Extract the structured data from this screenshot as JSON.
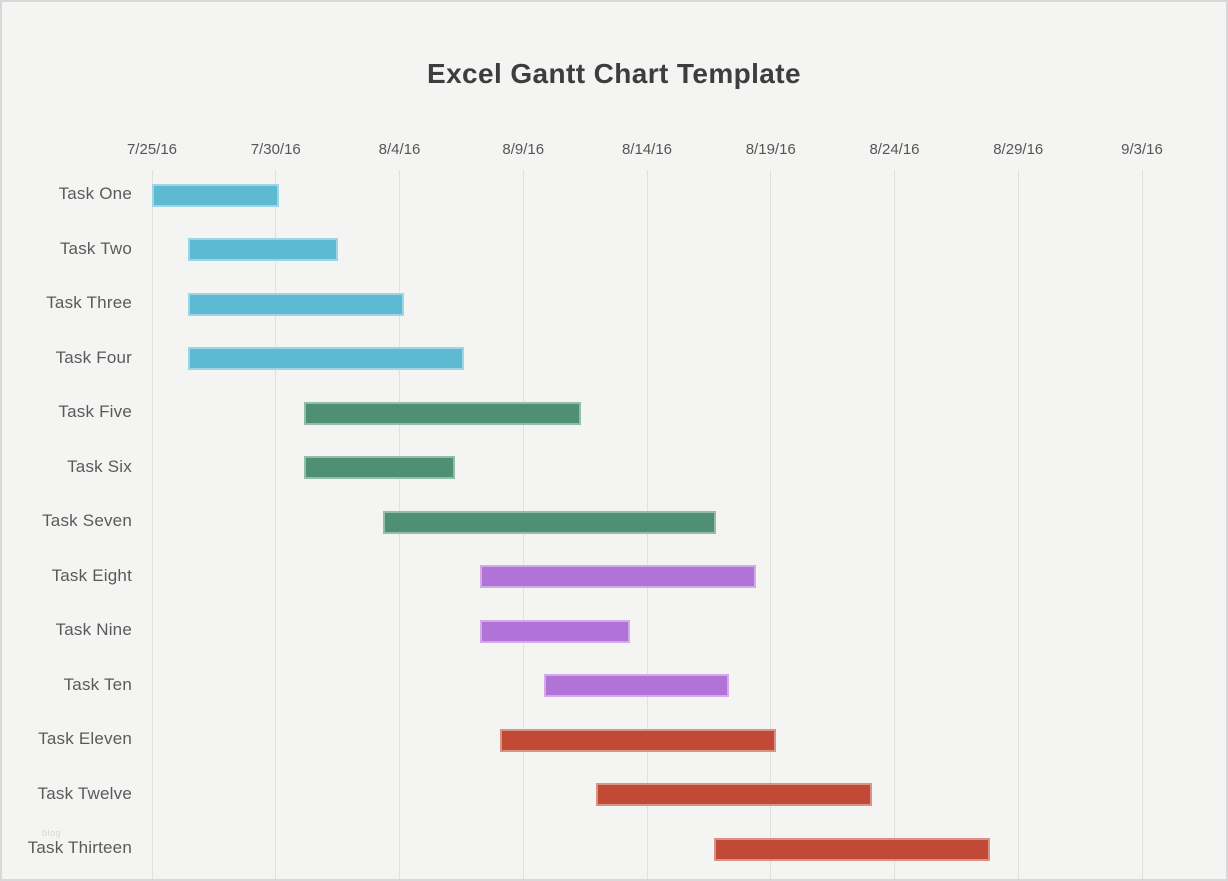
{
  "page": {
    "background": "#f4f4f3",
    "border_color": "#d8d8d8"
  },
  "title": "Excel Gantt Chart Template",
  "watermark": "blog",
  "chart_data": {
    "type": "bar",
    "subtype": "gantt-horizontal",
    "title": "Excel Gantt Chart Template",
    "legend": "none",
    "axis": {
      "position": "top",
      "unit": "date",
      "grid": true,
      "tick_labels": [
        "7/25/16",
        "7/30/16",
        "8/4/16",
        "8/9/16",
        "8/14/16",
        "8/19/16",
        "8/24/16",
        "8/29/16",
        "9/3/16"
      ],
      "tick_days": [
        0,
        5,
        10,
        15,
        20,
        25,
        30,
        35,
        40
      ],
      "range_days": [
        0,
        41
      ]
    },
    "categories": [
      "Task One",
      "Task Two",
      "Task Three",
      "Task Four",
      "Task Five",
      "Task Six",
      "Task Seven",
      "Task Eight",
      "Task Nine",
      "Task Ten",
      "Task Eleven",
      "Task Twelve",
      "Task Thirteen"
    ],
    "colors": {
      "blue": "#5EBAD3",
      "green": "#4F8F74",
      "purple": "#B273D9",
      "red": "#C14A37"
    },
    "tasks": [
      {
        "label": "Task One",
        "start_date": "7/25/16",
        "end_date": "7/30/16",
        "start_day": 0.0,
        "end_day": 5.15,
        "color_key": "blue"
      },
      {
        "label": "Task Two",
        "start_date": "7/26/16",
        "end_date": "8/1/16",
        "start_day": 1.45,
        "end_day": 7.5,
        "color_key": "blue"
      },
      {
        "label": "Task Three",
        "start_date": "7/26/16",
        "end_date": "8/4/16",
        "start_day": 1.45,
        "end_day": 10.2,
        "color_key": "blue"
      },
      {
        "label": "Task Four",
        "start_date": "7/26/16",
        "end_date": "8/6/16",
        "start_day": 1.45,
        "end_day": 12.6,
        "color_key": "blue"
      },
      {
        "label": "Task Five",
        "start_date": "7/31/16",
        "end_date": "8/11/16",
        "start_day": 6.15,
        "end_day": 17.35,
        "color_key": "green"
      },
      {
        "label": "Task Six",
        "start_date": "7/31/16",
        "end_date": "8/6/16",
        "start_day": 6.15,
        "end_day": 12.25,
        "color_key": "green"
      },
      {
        "label": "Task Seven",
        "start_date": "8/3/16",
        "end_date": "8/17/16",
        "start_day": 9.35,
        "end_day": 22.8,
        "color_key": "green"
      },
      {
        "label": "Task Eight",
        "start_date": "8/7/16",
        "end_date": "8/18/16",
        "start_day": 13.25,
        "end_day": 24.4,
        "color_key": "purple"
      },
      {
        "label": "Task Nine",
        "start_date": "8/7/16",
        "end_date": "8/13/16",
        "start_day": 13.25,
        "end_day": 19.3,
        "color_key": "purple"
      },
      {
        "label": "Task Ten",
        "start_date": "8/10/16",
        "end_date": "8/17/16",
        "start_day": 15.85,
        "end_day": 23.3,
        "color_key": "purple"
      },
      {
        "label": "Task Eleven",
        "start_date": "8/8/16",
        "end_date": "8/19/16",
        "start_day": 14.05,
        "end_day": 25.2,
        "color_key": "red"
      },
      {
        "label": "Task Twelve",
        "start_date": "8/12/16",
        "end_date": "8/23/16",
        "start_day": 17.95,
        "end_day": 29.1,
        "color_key": "red"
      },
      {
        "label": "Task Thirteen",
        "start_date": "8/17/16",
        "end_date": "8/28/16",
        "start_day": 22.7,
        "end_day": 33.85,
        "color_key": "red"
      }
    ]
  }
}
